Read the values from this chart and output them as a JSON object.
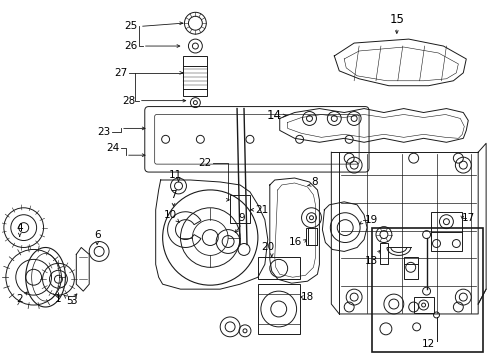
{
  "background_color": "#ffffff",
  "line_color": "#1a1a1a",
  "lw": 0.7,
  "font_size": 7.5
}
